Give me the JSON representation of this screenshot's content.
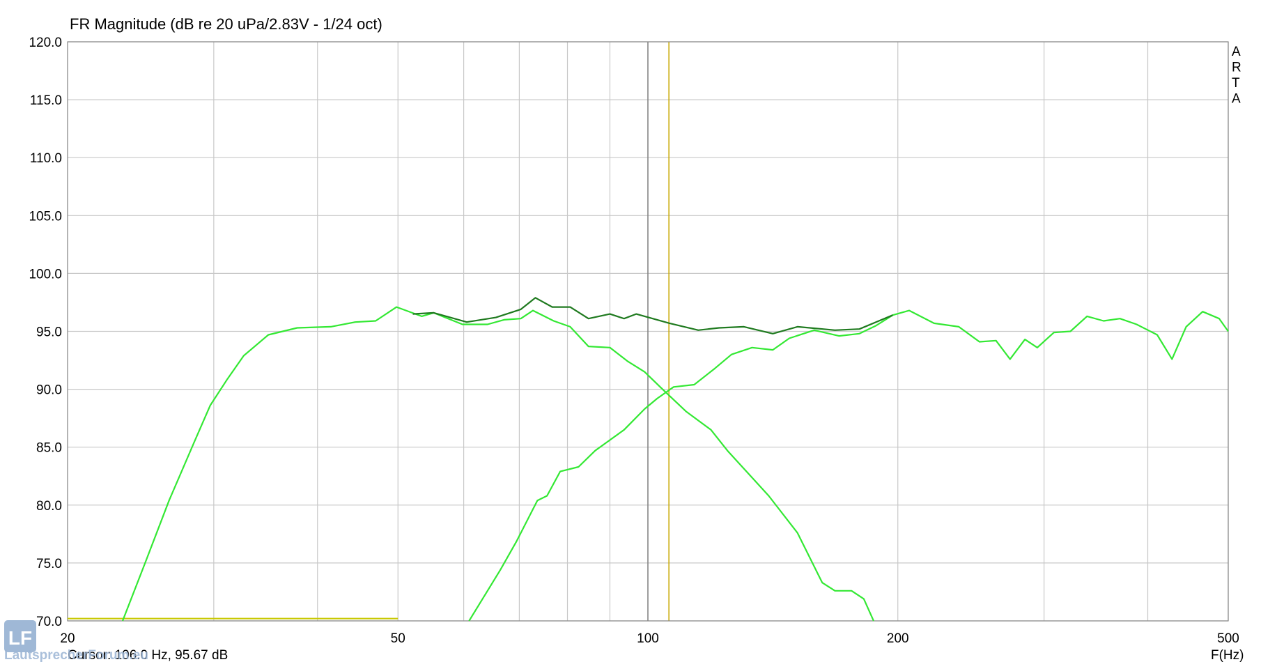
{
  "chart_data": {
    "type": "line",
    "title": "FR Magnitude (dB re 20 uPa/2.83V - 1/24 oct)",
    "x_label": "F(Hz)",
    "side_text": [
      "A",
      "R",
      "T",
      "A"
    ],
    "cursor_text": "Cursor: 106.0 Hz, 95.67 dB",
    "watermark": "LautsprecherForum.eu",
    "logo": "LF",
    "x_log": true,
    "xlim": [
      20,
      500
    ],
    "ylim": [
      70,
      120
    ],
    "xticks": [
      20,
      50,
      100,
      200,
      500
    ],
    "x_minor_grid": [
      30,
      40,
      60,
      70,
      80,
      90,
      300,
      400
    ],
    "yticks": [
      {
        "value": 70,
        "label": "70.0"
      },
      {
        "value": 75,
        "label": "75.0"
      },
      {
        "value": 80,
        "label": "80.0"
      },
      {
        "value": 85,
        "label": "85.0"
      },
      {
        "value": 90,
        "label": "90.0"
      },
      {
        "value": 95,
        "label": "95.0"
      },
      {
        "value": 100,
        "label": "100.0"
      },
      {
        "value": 105,
        "label": "105.0"
      },
      {
        "value": 110,
        "label": "110.0"
      },
      {
        "value": 115,
        "label": "115.0"
      },
      {
        "value": 120,
        "label": "120.0"
      }
    ],
    "grid": true,
    "markers": [
      {
        "x": 100,
        "color": "#808080"
      },
      {
        "x": 106,
        "color": "#c8a800"
      }
    ],
    "series": [
      {
        "color": "#c8c800",
        "x": [
          20,
          50
        ],
        "values": [
          70.2,
          70.2
        ]
      },
      {
        "color": "#33e833",
        "x": [
          23.3,
          24.8,
          26.5,
          28.4,
          29.7,
          31.1,
          32.6,
          34.9,
          37.8,
          41.5,
          44.4,
          47.0,
          49.8,
          53.4,
          55.2,
          59.8,
          64.1,
          67.1,
          70.3,
          72.7,
          77.0,
          80.6,
          84.8,
          90.0,
          94.6,
          99.1,
          103.8,
          111.1,
          119.1,
          124.7,
          139.8,
          151.4,
          162.2,
          168.0,
          175.9,
          182.0,
          187.0
        ],
        "values": [
          70,
          75,
          80.4,
          85.4,
          88.6,
          90.8,
          92.9,
          94.7,
          95.3,
          95.4,
          95.8,
          95.9,
          97.1,
          96.3,
          96.6,
          95.6,
          95.6,
          96.0,
          96.1,
          96.8,
          95.9,
          95.4,
          93.7,
          93.6,
          92.4,
          91.5,
          90.1,
          88.1,
          86.5,
          84.7,
          80.8,
          77.6,
          73.3,
          72.6,
          72.6,
          71.9,
          70
        ]
      },
      {
        "color": "#33e833",
        "x": [
          60.9,
          64.1,
          66.4,
          69.5,
          73.6,
          75.6,
          78.4,
          82.5,
          86.4,
          93.6,
          99.1,
          102.6,
          107.4,
          113.7,
          120.4,
          126.1,
          133.5,
          141.4,
          148.0,
          158.6,
          169.9,
          179.8,
          188.3,
          197.2,
          206.4,
          221.1,
          236.8,
          250.8,
          262.6,
          273.0,
          284.5,
          294.4,
          308.3,
          322.8,
          338.0,
          353.9,
          370.3,
          387.8,
          410.6,
          427.8,
          444.9,
          465.8,
          487.6,
          500
        ],
        "values": [
          70,
          72.6,
          74.4,
          76.9,
          80.4,
          80.8,
          82.9,
          83.3,
          84.7,
          86.5,
          88.3,
          89.2,
          90.2,
          90.4,
          91.8,
          93.0,
          93.6,
          93.4,
          94.4,
          95.1,
          94.6,
          94.8,
          95.5,
          96.4,
          96.8,
          95.7,
          95.4,
          94.1,
          94.2,
          92.6,
          94.3,
          93.6,
          94.9,
          95.0,
          96.3,
          95.9,
          96.1,
          95.6,
          94.7,
          92.6,
          95.4,
          96.7,
          96.1,
          95.0
        ]
      },
      {
        "color": "#1f7a1f",
        "x": [
          52.1,
          55.2,
          60.5,
          65.6,
          70.3,
          73.2,
          76.7,
          80.6,
          84.8,
          90.0,
          93.6,
          96.8,
          106.2,
          115.0,
          121.8,
          130.5,
          141.4,
          151.4,
          168.0,
          179.8,
          197.2
        ],
        "values": [
          96.5,
          96.6,
          95.8,
          96.2,
          96.9,
          97.9,
          97.1,
          97.1,
          96.1,
          96.5,
          96.1,
          96.5,
          95.7,
          95.1,
          95.3,
          95.4,
          94.8,
          95.4,
          95.1,
          95.2,
          96.4
        ]
      }
    ]
  }
}
